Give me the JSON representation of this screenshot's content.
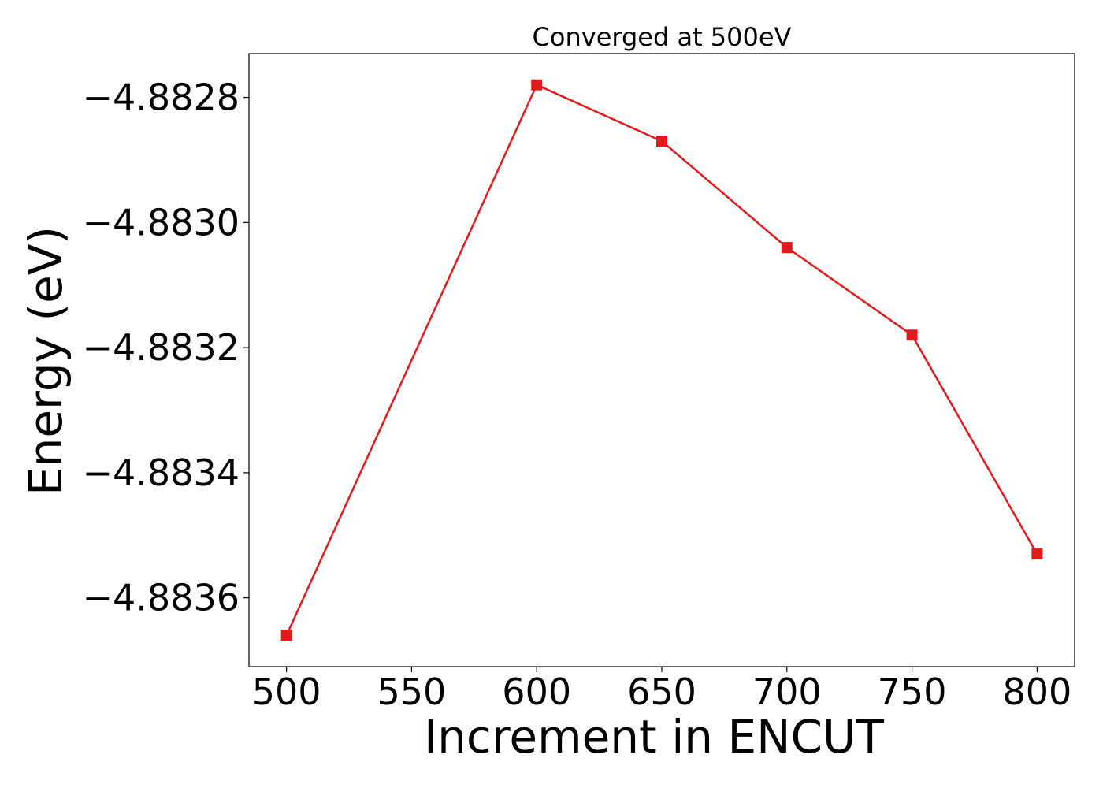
{
  "chart_data": {
    "type": "line",
    "title": "Converged at 500eV",
    "xlabel": "Increment in ENCUT",
    "ylabel": "Energy (eV)",
    "x": [
      500,
      600,
      650,
      700,
      750,
      800
    ],
    "series": [
      {
        "values": [
          -4.88366,
          -4.88278,
          -4.88287,
          -4.88304,
          -4.88318,
          -4.88353
        ],
        "color": "#e31a1c",
        "marker": "square"
      }
    ],
    "xticks": [
      500,
      550,
      600,
      650,
      700,
      750,
      800
    ],
    "xtick_labels": [
      "500",
      "550",
      "600",
      "650",
      "700",
      "750",
      "800"
    ],
    "yticks": [
      -4.8836,
      -4.8834,
      -4.8832,
      -4.883,
      -4.8828
    ],
    "ytick_labels": [
      "−4.8836",
      "−4.8834",
      "−4.8832",
      "−4.8830",
      "−4.8828"
    ],
    "xlim": [
      485,
      815
    ],
    "ylim": [
      -4.88371,
      -4.88273
    ],
    "grid": false,
    "legend": false
  }
}
